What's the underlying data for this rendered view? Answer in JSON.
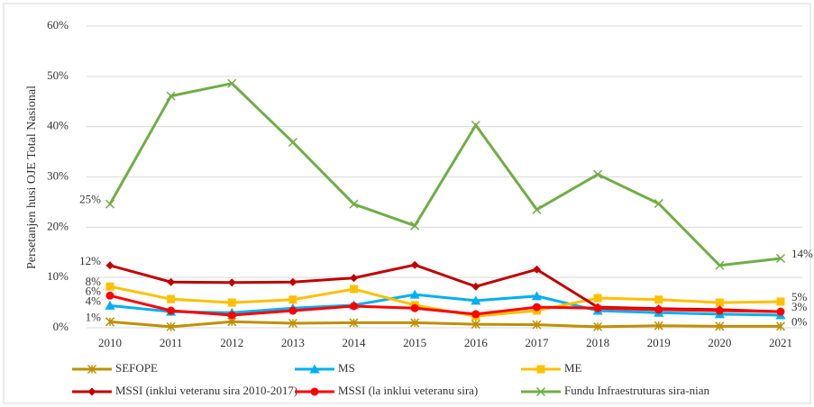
{
  "chart_data": {
    "type": "line",
    "y_label": "Persetanjen husi OJE Total Nasional",
    "categories": [
      "2010",
      "2011",
      "2012",
      "2013",
      "2014",
      "2015",
      "2016",
      "2017",
      "2018",
      "2019",
      "2020",
      "2021"
    ],
    "ylim": [
      0,
      60
    ],
    "yticks": [
      {
        "value": 0,
        "label": "0%"
      },
      {
        "value": 10,
        "label": "10%"
      },
      {
        "value": 20,
        "label": "20%"
      },
      {
        "value": 30,
        "label": "30%"
      },
      {
        "value": 40,
        "label": "40%"
      },
      {
        "value": 50,
        "label": "50%"
      },
      {
        "value": 60,
        "label": "60%"
      }
    ],
    "grid": true,
    "legend": "bottom",
    "series": [
      {
        "name": "SEFOPE",
        "color": "#bf9000",
        "marker": "star",
        "values": [
          1.2,
          0.2,
          1.2,
          0.9,
          1.0,
          1.0,
          0.7,
          0.6,
          0.2,
          0.4,
          0.3,
          0.3
        ],
        "value_labels": [
          "1%",
          null,
          null,
          null,
          null,
          null,
          null,
          null,
          null,
          null,
          null,
          "0%"
        ]
      },
      {
        "name": "MS",
        "color": "#00b0f0",
        "marker": "triangle",
        "values": [
          4.4,
          3.2,
          3.0,
          3.9,
          4.5,
          6.6,
          5.4,
          6.3,
          3.4,
          3.0,
          2.7,
          2.5
        ],
        "value_labels": [
          "4%",
          null,
          null,
          null,
          null,
          null,
          null,
          null,
          null,
          null,
          null,
          null
        ]
      },
      {
        "name": "ME",
        "color": "#ffc000",
        "marker": "square",
        "values": [
          8.2,
          5.7,
          5.0,
          5.6,
          7.7,
          4.5,
          2.3,
          3.4,
          5.9,
          5.6,
          5.0,
          5.2
        ],
        "value_labels": [
          "8%",
          null,
          null,
          null,
          null,
          null,
          null,
          null,
          null,
          null,
          null,
          "5%"
        ]
      },
      {
        "name": "MSSI (inklui veteranu sira 2010-2017)",
        "color": "#c00000",
        "marker": "diamond",
        "values": [
          12.4,
          9.1,
          9.0,
          9.1,
          9.9,
          12.5,
          8.2,
          11.6,
          4.1,
          3.8,
          3.6,
          3.2
        ],
        "value_labels": [
          "12%",
          null,
          null,
          null,
          null,
          null,
          null,
          null,
          null,
          null,
          null,
          null
        ]
      },
      {
        "name": "MSSI (la inklui veteranu sira)",
        "color": "#ff0000",
        "marker": "circle",
        "values": [
          6.4,
          3.4,
          2.5,
          3.4,
          4.3,
          3.9,
          2.7,
          4.1,
          3.9,
          3.6,
          3.4,
          3.2
        ],
        "value_labels": [
          "6%",
          null,
          null,
          null,
          null,
          null,
          null,
          null,
          null,
          null,
          null,
          "3%"
        ]
      },
      {
        "name": "Fundu Infraestruturas sira-nian",
        "color": "#70ad47",
        "marker": "x",
        "values": [
          24.6,
          46.1,
          48.6,
          36.9,
          24.6,
          20.3,
          40.3,
          23.5,
          30.5,
          24.7,
          12.4,
          13.8
        ],
        "value_labels": [
          "25%",
          null,
          null,
          null,
          null,
          null,
          null,
          null,
          null,
          null,
          null,
          "14%"
        ]
      }
    ]
  }
}
